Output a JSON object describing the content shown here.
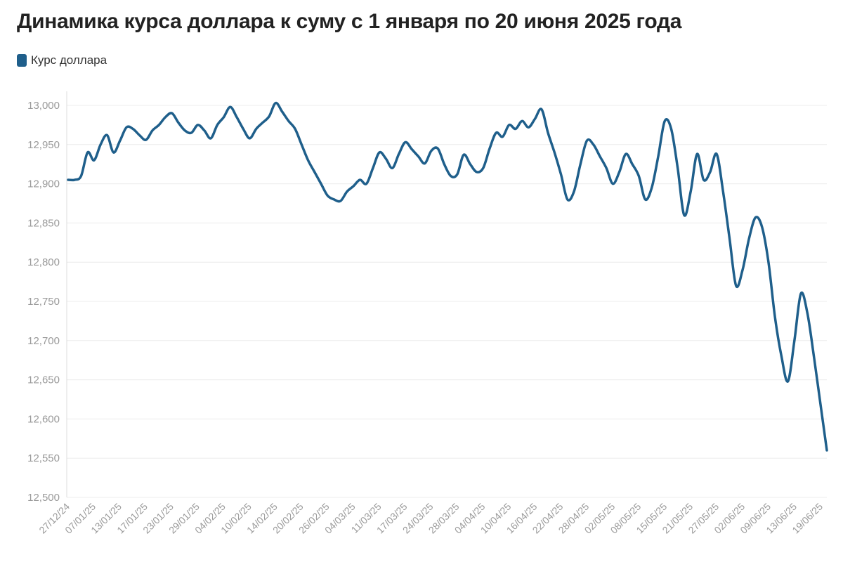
{
  "chart_data": {
    "type": "line",
    "title": "Динамика курса доллара к суму с 1 января по 20 июня 2025 года",
    "legend_position": "top-left",
    "grid": true,
    "ylim": [
      12500,
      13000
    ],
    "y_ticks": [
      "12,500",
      "12,550",
      "12,600",
      "12,650",
      "12,700",
      "12,750",
      "12,800",
      "12,850",
      "12,900",
      "12,950",
      "13,000"
    ],
    "x_tick_labels": [
      "27/12/24",
      "07/01/25",
      "13/01/25",
      "17/01/25",
      "23/01/25",
      "29/01/25",
      "04/02/25",
      "10/02/25",
      "14/02/25",
      "20/02/25",
      "26/02/25",
      "04/03/25",
      "11/03/25",
      "17/03/25",
      "24/03/25",
      "28/03/25",
      "04/04/25",
      "10/04/25",
      "16/04/25",
      "22/04/25",
      "28/04/25",
      "02/05/25",
      "08/05/25",
      "15/05/25",
      "21/05/25",
      "27/05/25",
      "02/06/25",
      "09/06/25",
      "13/06/25",
      "19/06/25"
    ],
    "series": [
      {
        "name": "Курс доллара",
        "color": "#1f5f8b",
        "values": [
          12905,
          12905,
          12910,
          12940,
          12930,
          12950,
          12962,
          12940,
          12955,
          12972,
          12970,
          12962,
          12956,
          12968,
          12975,
          12985,
          12990,
          12978,
          12968,
          12965,
          12975,
          12968,
          12958,
          12975,
          12985,
          12998,
          12985,
          12970,
          12958,
          12970,
          12978,
          12986,
          13003,
          12992,
          12980,
          12970,
          12950,
          12930,
          12915,
          12900,
          12885,
          12880,
          12878,
          12890,
          12897,
          12905,
          12900,
          12920,
          12940,
          12932,
          12920,
          12938,
          12953,
          12944,
          12935,
          12926,
          12942,
          12945,
          12925,
          12910,
          12912,
          12937,
          12925,
          12915,
          12920,
          12945,
          12965,
          12960,
          12975,
          12970,
          12980,
          12972,
          12983,
          12995,
          12965,
          12940,
          12912,
          12880,
          12890,
          12925,
          12955,
          12950,
          12935,
          12920,
          12900,
          12915,
          12938,
          12925,
          12910,
          12880,
          12895,
          12935,
          12980,
          12970,
          12920,
          12860,
          12890,
          12938,
          12905,
          12915,
          12938,
          12890,
          12830,
          12770,
          12790,
          12830,
          12857,
          12845,
          12800,
          12730,
          12680,
          12648,
          12700,
          12760,
          12735,
          12680,
          12620,
          12560
        ]
      }
    ]
  }
}
